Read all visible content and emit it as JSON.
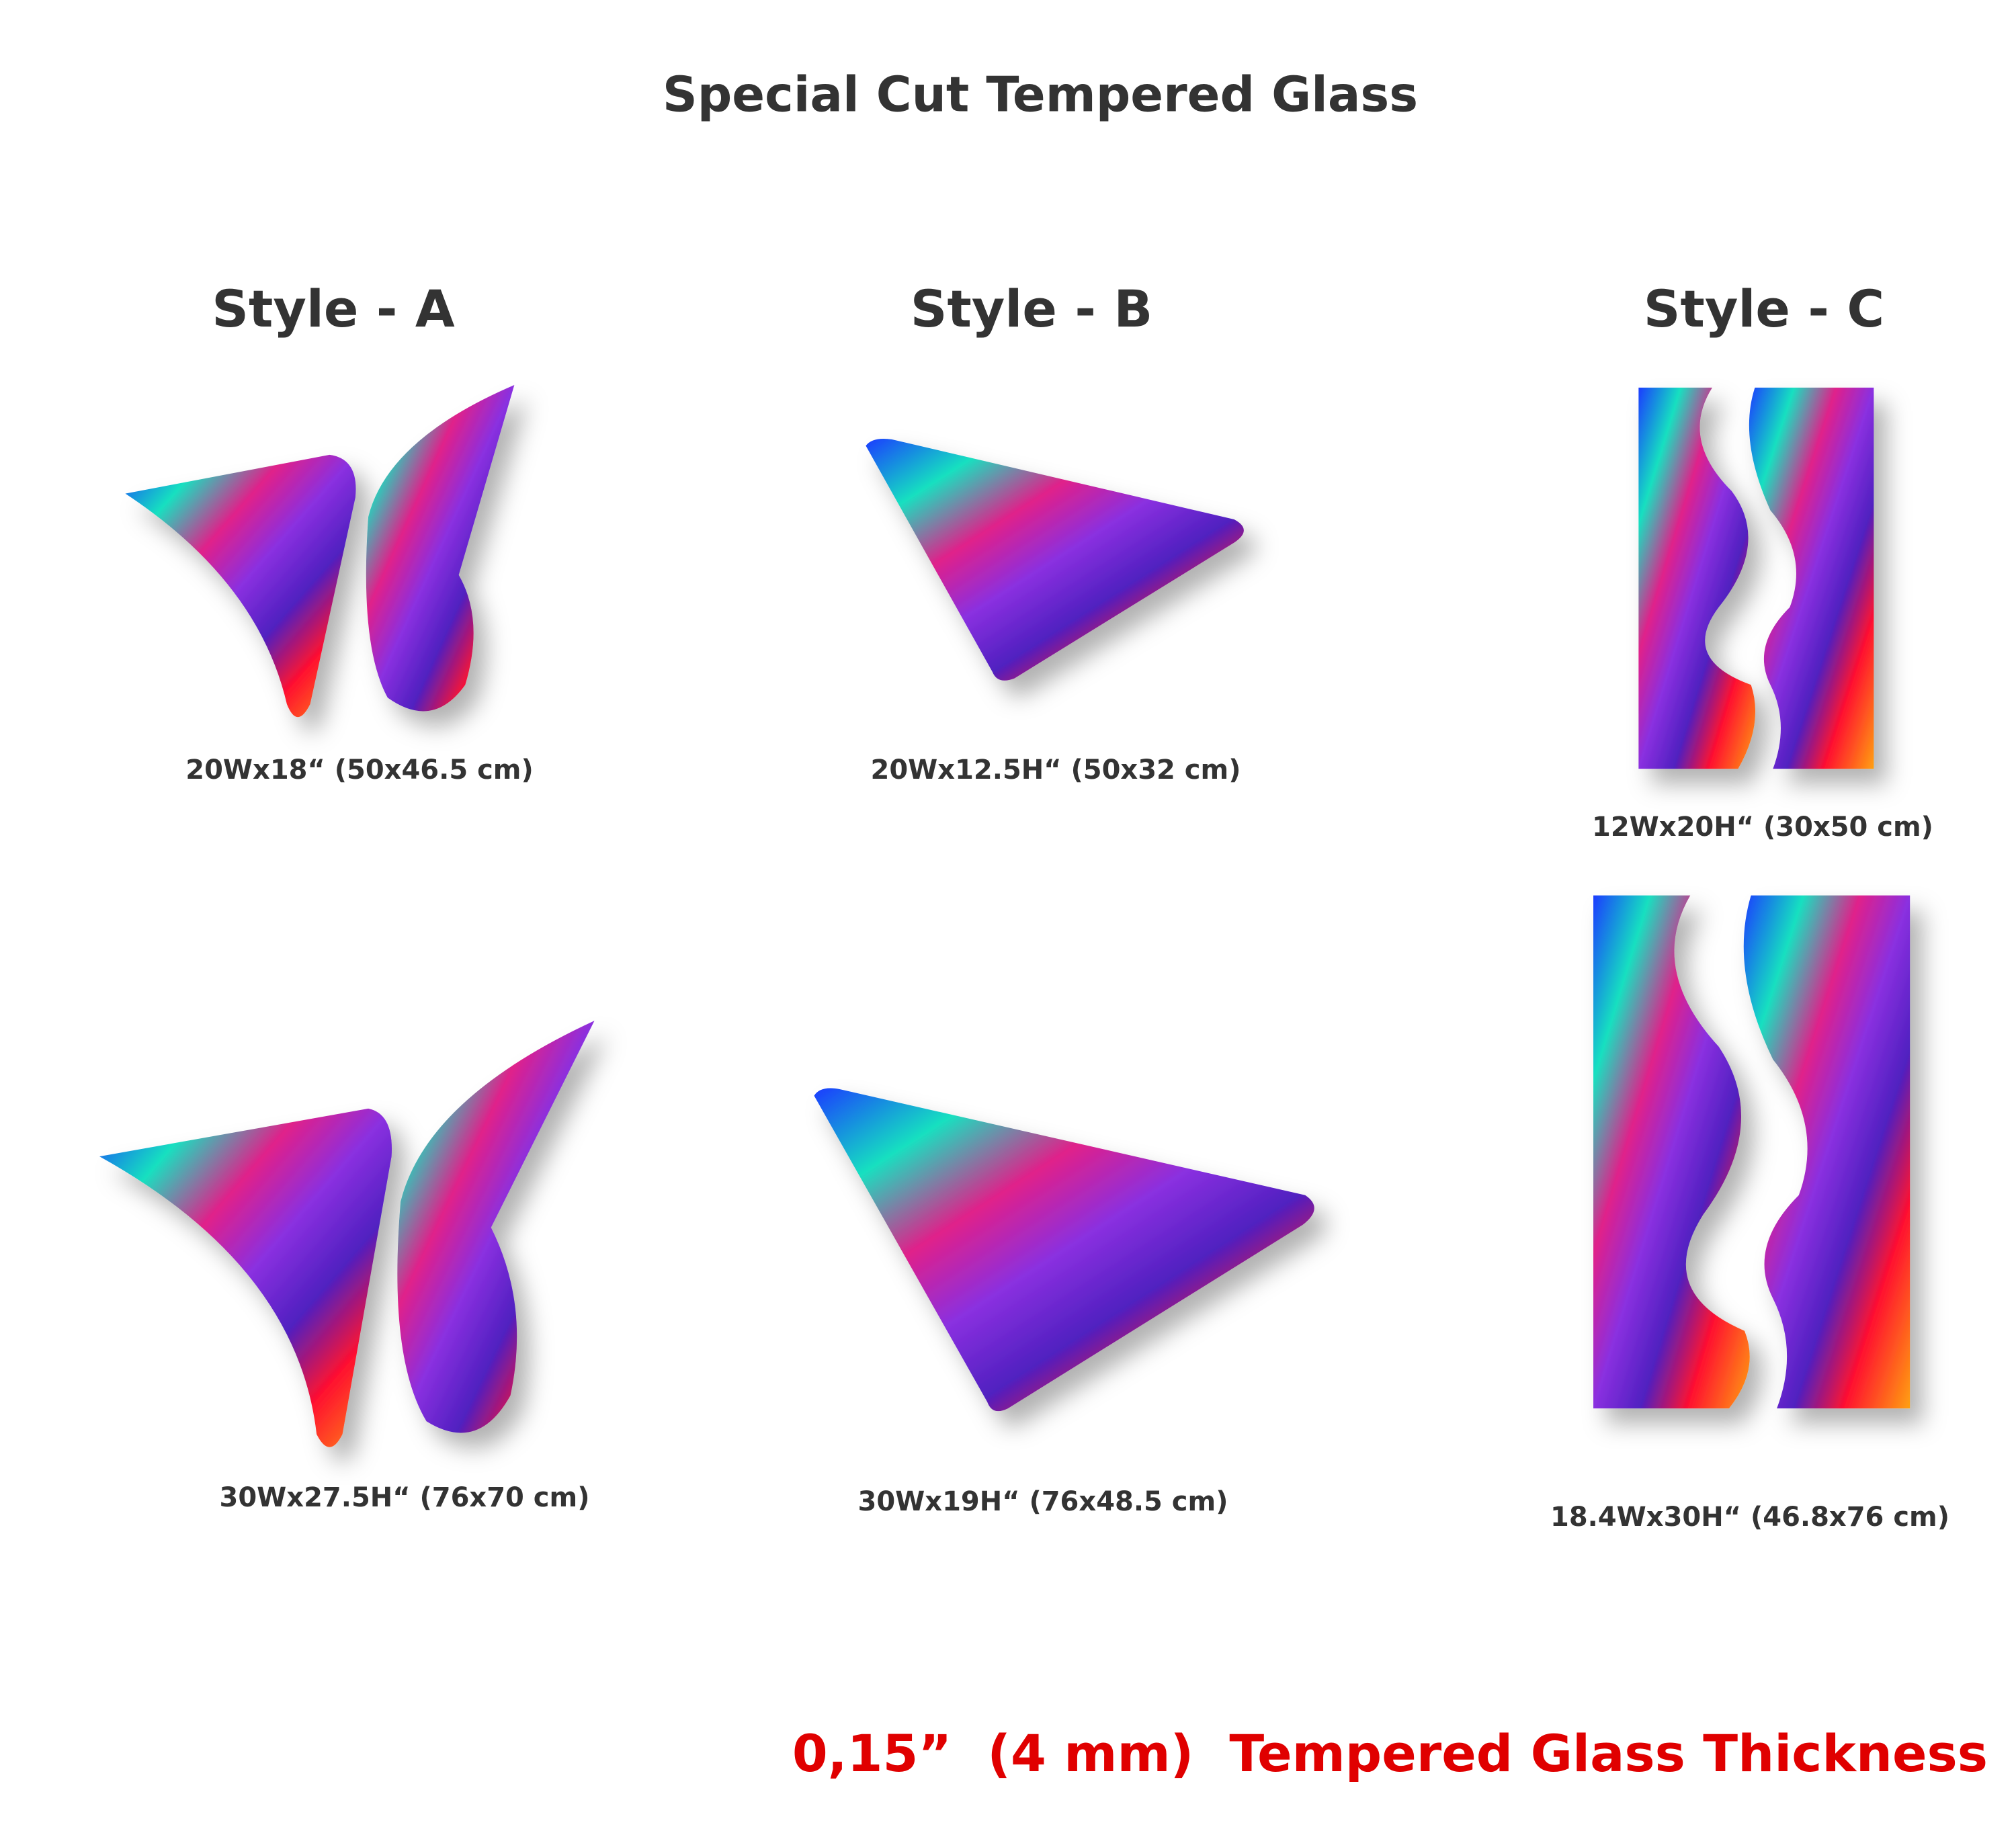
{
  "title": "Special Cut Tempered Glass",
  "styles": [
    {
      "heading": "Style - A",
      "sizes": [
        "20Wx18“ (50x46.5 cm)",
        "30Wx27.5H“ (76x70 cm)"
      ]
    },
    {
      "heading": "Style - B",
      "sizes": [
        "20Wx12.5H“ (50x32 cm)",
        "30Wx19H“ (76x48.5 cm)"
      ]
    },
    {
      "heading": "Style - C",
      "sizes": [
        "12Wx20H“ (30x50 cm)",
        "18.4Wx30H“ (46.8x76 cm)"
      ]
    }
  ],
  "thickness_note": "0,15”  (4 mm)  Tempered Glass Thickness"
}
